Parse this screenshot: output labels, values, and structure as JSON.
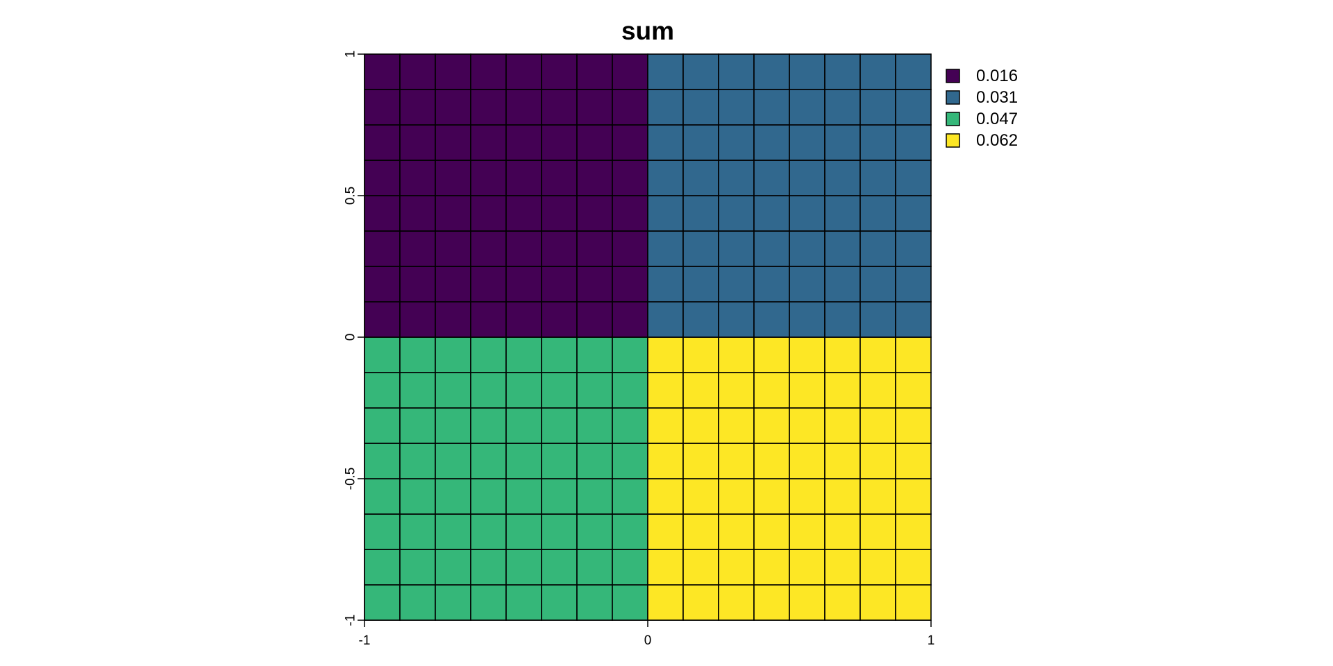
{
  "chart_data": {
    "type": "heatmap",
    "title": "sum",
    "xlabel": "",
    "ylabel": "",
    "xlim": [
      -1,
      1
    ],
    "ylim": [
      -1,
      1
    ],
    "x_ticks": [
      -1,
      0,
      1
    ],
    "x_tick_labels": [
      "-1",
      "0",
      "1"
    ],
    "y_ticks": [
      -1,
      -0.5,
      0,
      0.5,
      1
    ],
    "y_tick_labels": [
      "-1",
      "-0.5",
      "0",
      "0.5",
      "1"
    ],
    "grid_cells_per_side": 16,
    "grid": false,
    "legend_position": "right",
    "legend": [
      {
        "label": "0.016",
        "color": "#440154"
      },
      {
        "label": "0.031",
        "color": "#31688E"
      },
      {
        "label": "0.047",
        "color": "#35B779"
      },
      {
        "label": "0.062",
        "color": "#FDE725"
      }
    ],
    "regions": [
      {
        "x_range": [
          -1,
          0
        ],
        "y_range": [
          0,
          1
        ],
        "value": "0.016"
      },
      {
        "x_range": [
          0,
          1
        ],
        "y_range": [
          0,
          1
        ],
        "value": "0.031"
      },
      {
        "x_range": [
          -1,
          0
        ],
        "y_range": [
          -1,
          0
        ],
        "value": "0.047"
      },
      {
        "x_range": [
          0,
          1
        ],
        "y_range": [
          -1,
          0
        ],
        "value": "0.062"
      }
    ]
  }
}
